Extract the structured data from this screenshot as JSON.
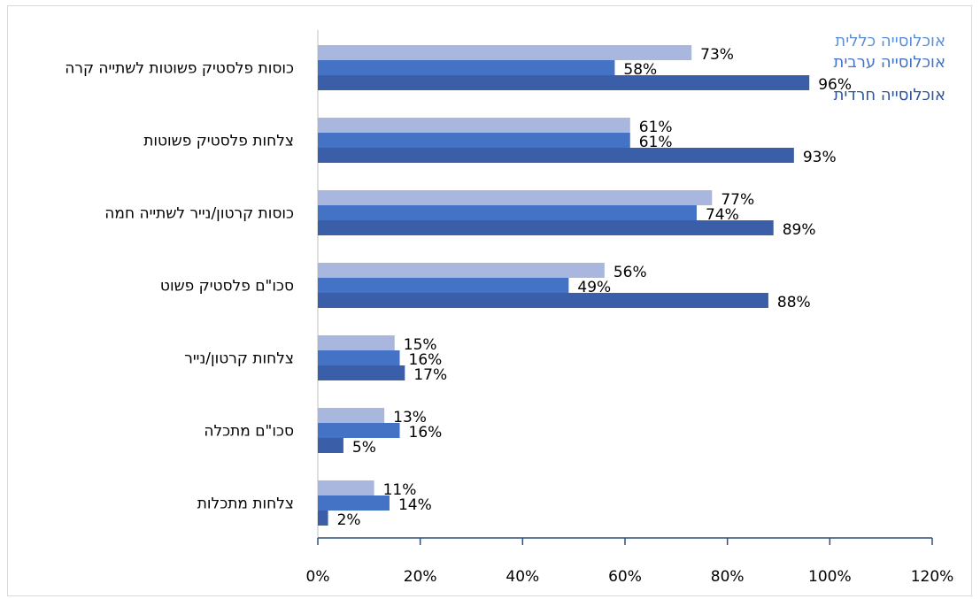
{
  "chart_data": {
    "type": "bar",
    "orientation": "horizontal",
    "categories": [
      "כוסות פלסטיק פשוטות לשתייה קרה",
      "צלחות פלסטיק פשוטות",
      "כוסות קרטון/נייר לשתייה חמה",
      "סכו\"ם פלסטיק פשוט",
      "צלחות קרטון/נייר",
      "סכו\"ם מתכלה",
      "צלחות מתכלות"
    ],
    "series": [
      {
        "name": "אוכלוסייה כללית",
        "color": "#a9b6dd",
        "values": [
          73,
          61,
          77,
          56,
          15,
          13,
          11
        ]
      },
      {
        "name": "אוכלוסייה ערבית",
        "color": "#4472c4",
        "values": [
          58,
          61,
          74,
          49,
          16,
          16,
          14
        ]
      },
      {
        "name": "אוכלוסייה חרדית",
        "color": "#3a5fa8",
        "values": [
          96,
          93,
          89,
          88,
          17,
          5,
          2
        ]
      }
    ],
    "value_suffix": "%",
    "xlim": [
      0,
      120
    ],
    "xticks": [
      0,
      20,
      40,
      60,
      80,
      100,
      120
    ],
    "xtick_labels": [
      "0%",
      "20%",
      "40%",
      "60%",
      "80%",
      "100%",
      "120%"
    ],
    "grid": false,
    "legend_position": "top-right",
    "legend_colors": [
      "#5b8fd6",
      "#4472c4",
      "#2f5597"
    ]
  }
}
